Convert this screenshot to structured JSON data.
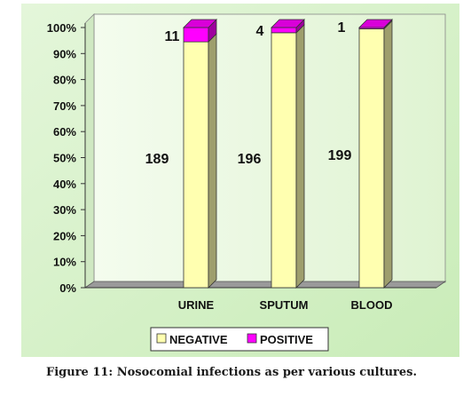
{
  "caption": "Figure 11: Nosocomial infections as per various cultures.",
  "chart_data": {
    "type": "bar",
    "stacked": "percent",
    "categories": [
      "URINE",
      "SPUTUM",
      "BLOOD"
    ],
    "series": [
      {
        "name": "NEGATIVE",
        "values": [
          189,
          196,
          199
        ],
        "color": "#ffffb0"
      },
      {
        "name": "POSITIVE",
        "values": [
          11,
          4,
          1
        ],
        "color": "#ff00ff"
      }
    ],
    "y_ticks": [
      "0%",
      "10%",
      "20%",
      "30%",
      "40%",
      "50%",
      "60%",
      "70%",
      "80%",
      "90%",
      "100%"
    ],
    "ylim": [
      0,
      100
    ],
    "legend_position": "bottom",
    "grid": false,
    "plot_background": "#e8f8e0",
    "chart_background": "#ddf2d4"
  }
}
